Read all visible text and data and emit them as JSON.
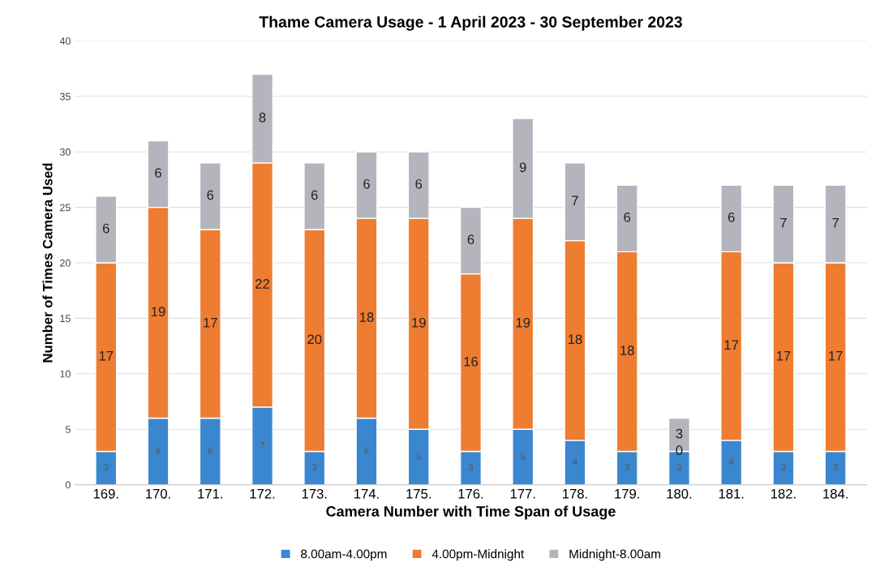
{
  "chart_data": {
    "type": "bar",
    "title": "Thame Camera Usage - 1 April 2023 - 30 September 2023",
    "xlabel": "Camera Number with Time Span of Usage",
    "ylabel": "Number of Times Camera Used",
    "categories": [
      "169.",
      "170.",
      "171.",
      "172.",
      "173.",
      "174.",
      "175.",
      "176.",
      "177.",
      "178.",
      "179.",
      "180.",
      "181.",
      "182.",
      "184."
    ],
    "series": [
      {
        "name": "8.00am-4.00pm",
        "color": "#3a87d0",
        "values": [
          3,
          6,
          6,
          7,
          3,
          6,
          5,
          3,
          5,
          4,
          3,
          3,
          4,
          3,
          3
        ]
      },
      {
        "name": "4.00pm-Midnight",
        "color": "#ee7d31",
        "values": [
          17,
          19,
          17,
          22,
          20,
          18,
          19,
          16,
          19,
          18,
          18,
          0,
          17,
          17,
          17
        ]
      },
      {
        "name": "Midnight-8.00am",
        "color": "#b4b4bc",
        "values": [
          6,
          6,
          6,
          8,
          6,
          6,
          6,
          6,
          9,
          7,
          6,
          3,
          6,
          7,
          7
        ]
      }
    ],
    "stacked": true,
    "data_labels": true,
    "ylim": [
      0,
      40
    ],
    "yticks": [
      0,
      5,
      10,
      15,
      20,
      25,
      30,
      35,
      40
    ],
    "grid": "y",
    "legend": "bottom"
  }
}
